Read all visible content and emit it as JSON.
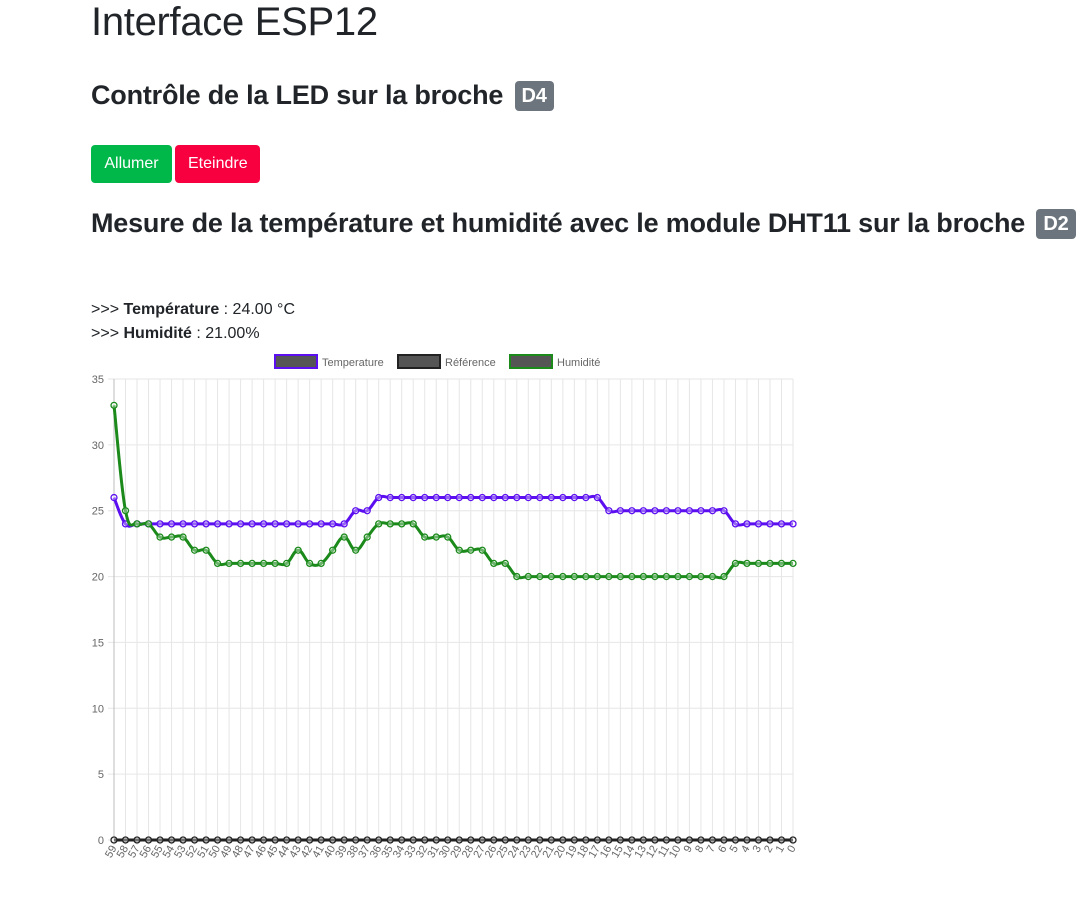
{
  "page": {
    "title": "Interface ESP12",
    "led_heading": "Contrôle de la LED sur la broche",
    "led_pin": "D4",
    "on_label": "Allumer",
    "off_label": "Eteindre",
    "dht_heading": "Mesure de la température et humidité avec le module DHT11 sur la broche",
    "dht_pin": "D2",
    "temp_prefix": ">>> ",
    "temp_label": "Température",
    "temp_value": " : 24.00 °C",
    "hum_prefix": ">>> ",
    "hum_label": "Humidité",
    "hum_value": " : 21.00%"
  },
  "chart_data": {
    "type": "line",
    "title": "",
    "xlabel": "",
    "ylabel": "",
    "ylim": [
      0,
      35
    ],
    "yticks": [
      0,
      5,
      10,
      15,
      20,
      25,
      30,
      35
    ],
    "grid": true,
    "legend_position": "top",
    "categories": [
      "59",
      "58",
      "57",
      "56",
      "55",
      "54",
      "53",
      "52",
      "51",
      "50",
      "49",
      "48",
      "47",
      "46",
      "45",
      "44",
      "43",
      "42",
      "41",
      "40",
      "39",
      "38",
      "37",
      "36",
      "35",
      "34",
      "33",
      "32",
      "31",
      "30",
      "29",
      "28",
      "27",
      "26",
      "25",
      "24",
      "23",
      "22",
      "21",
      "20",
      "19",
      "18",
      "17",
      "16",
      "15",
      "14",
      "13",
      "12",
      "11",
      "10",
      "9",
      "8",
      "7",
      "6",
      "5",
      "4",
      "3",
      "2",
      "1",
      "0"
    ],
    "series": [
      {
        "name": "Temperature",
        "color": "#5b0ef0",
        "values": [
          26,
          24,
          24,
          24,
          24,
          24,
          24,
          24,
          24,
          24,
          24,
          24,
          24,
          24,
          24,
          24,
          24,
          24,
          24,
          24,
          24,
          25,
          25,
          26,
          26,
          26,
          26,
          26,
          26,
          26,
          26,
          26,
          26,
          26,
          26,
          26,
          26,
          26,
          26,
          26,
          26,
          26,
          26,
          25,
          25,
          25,
          25,
          25,
          25,
          25,
          25,
          25,
          25,
          25,
          24,
          24,
          24,
          24,
          24,
          24
        ]
      },
      {
        "name": "Référence",
        "color": "#222222",
        "values": [
          0,
          0,
          0,
          0,
          0,
          0,
          0,
          0,
          0,
          0,
          0,
          0,
          0,
          0,
          0,
          0,
          0,
          0,
          0,
          0,
          0,
          0,
          0,
          0,
          0,
          0,
          0,
          0,
          0,
          0,
          0,
          0,
          0,
          0,
          0,
          0,
          0,
          0,
          0,
          0,
          0,
          0,
          0,
          0,
          0,
          0,
          0,
          0,
          0,
          0,
          0,
          0,
          0,
          0,
          0,
          0,
          0,
          0,
          0,
          0
        ]
      },
      {
        "name": "Humidité",
        "color": "#1b8a1b",
        "values": [
          33,
          25,
          24,
          24,
          23,
          23,
          23,
          22,
          22,
          21,
          21,
          21,
          21,
          21,
          21,
          21,
          22,
          21,
          21,
          22,
          23,
          22,
          23,
          24,
          24,
          24,
          24,
          23,
          23,
          23,
          22,
          22,
          22,
          21,
          21,
          20,
          20,
          20,
          20,
          20,
          20,
          20,
          20,
          20,
          20,
          20,
          20,
          20,
          20,
          20,
          20,
          20,
          20,
          20,
          21,
          21,
          21,
          21,
          21,
          21
        ]
      }
    ]
  }
}
